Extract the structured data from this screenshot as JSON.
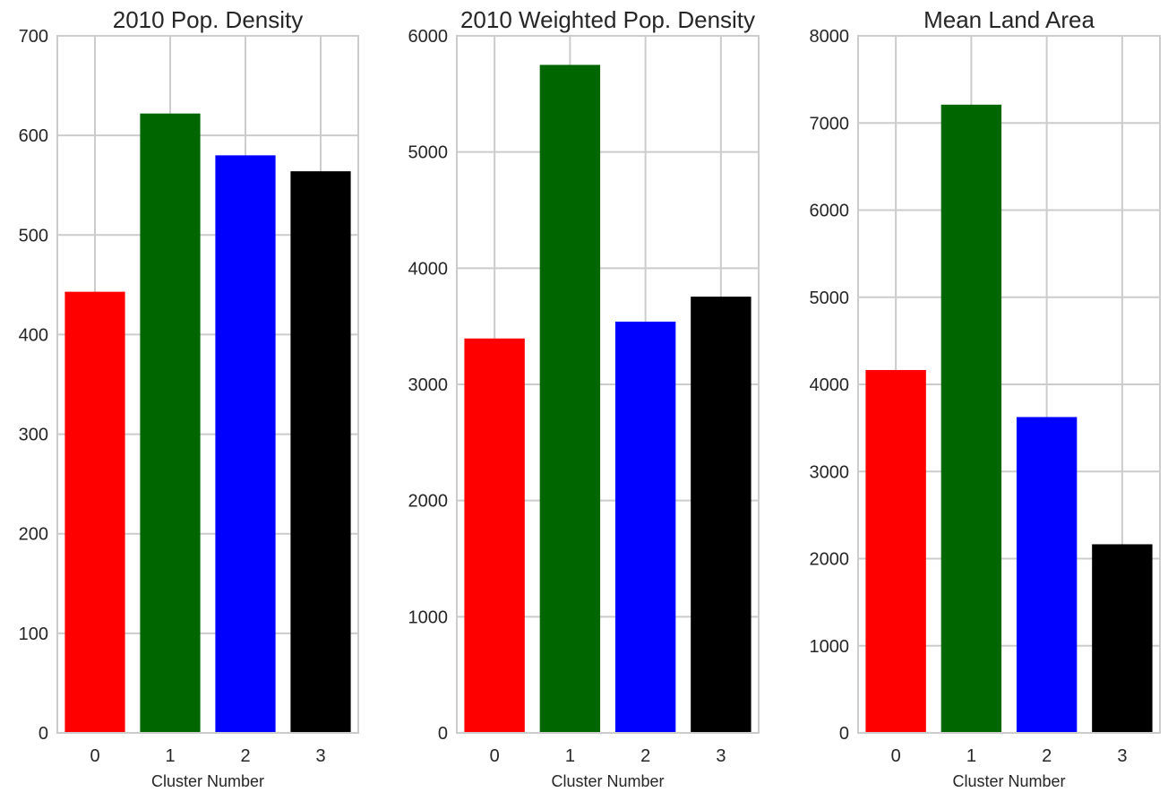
{
  "chart_data": [
    {
      "type": "bar",
      "title": "2010 Pop. Density",
      "xlabel": "Cluster Number",
      "ylabel": "",
      "categories": [
        "0",
        "1",
        "2",
        "3"
      ],
      "values": [
        443,
        622,
        580,
        564
      ],
      "colors": [
        "#ff0000",
        "#006600",
        "#0000ff",
        "#000000"
      ],
      "ylim": [
        0,
        700
      ],
      "yticks": [
        0,
        100,
        200,
        300,
        400,
        500,
        600,
        700
      ],
      "grid": true
    },
    {
      "type": "bar",
      "title": "2010 Weighted Pop. Density",
      "xlabel": "Cluster Number",
      "ylabel": "",
      "categories": [
        "0",
        "1",
        "2",
        "3"
      ],
      "values": [
        3395,
        5750,
        3540,
        3755
      ],
      "colors": [
        "#ff0000",
        "#006600",
        "#0000ff",
        "#000000"
      ],
      "ylim": [
        0,
        6000
      ],
      "yticks": [
        0,
        1000,
        2000,
        3000,
        4000,
        5000,
        6000
      ],
      "grid": true
    },
    {
      "type": "bar",
      "title": "Mean Land Area",
      "xlabel": "Cluster Number",
      "ylabel": "",
      "categories": [
        "0",
        "1",
        "2",
        "3"
      ],
      "values": [
        4165,
        7210,
        3625,
        2165
      ],
      "colors": [
        "#ff0000",
        "#006600",
        "#0000ff",
        "#000000"
      ],
      "ylim": [
        0,
        8000
      ],
      "yticks": [
        0,
        1000,
        2000,
        3000,
        4000,
        5000,
        6000,
        7000,
        8000
      ],
      "grid": true
    }
  ]
}
